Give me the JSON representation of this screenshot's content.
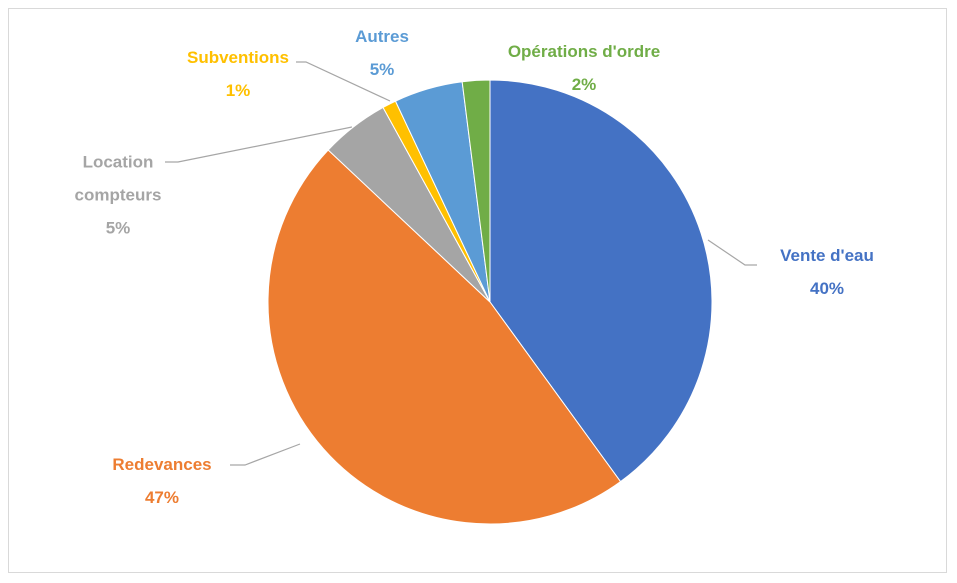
{
  "chart_data": {
    "type": "pie",
    "categories": [
      "Vente d'eau",
      "Redevances",
      "Location compteurs",
      "Subventions",
      "Autres",
      "Opérations d'ordre"
    ],
    "values": [
      40,
      47,
      5,
      1,
      5,
      2
    ],
    "value_labels": [
      "40%",
      "47%",
      "5%",
      "1%",
      "5%",
      "2%"
    ],
    "colors": [
      "#4472c4",
      "#ed7d31",
      "#a5a5a5",
      "#ffc000",
      "#5b9bd5",
      "#70ad47"
    ]
  }
}
